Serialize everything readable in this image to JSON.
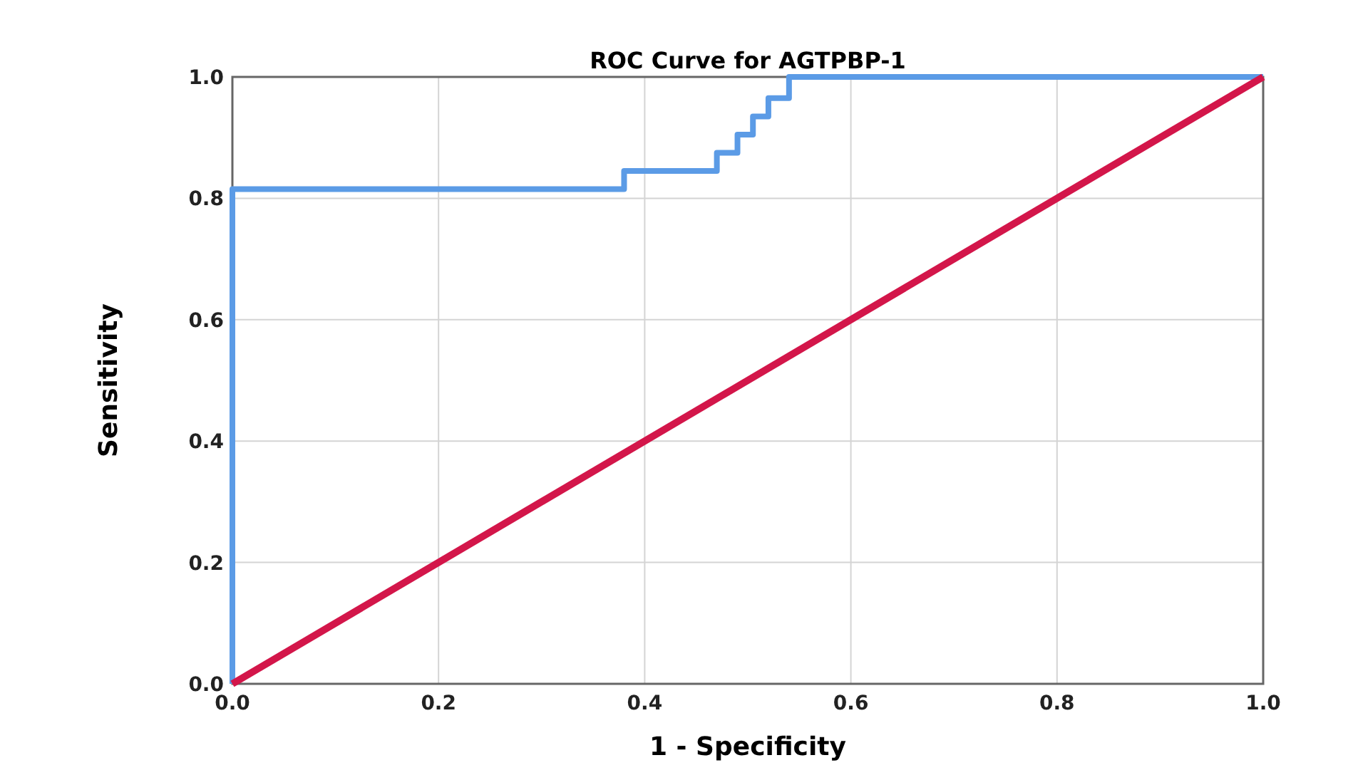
{
  "chart_data": {
    "type": "line",
    "title": "ROC Curve for AGTPBP-1",
    "xlabel": "1 - Specificity",
    "ylabel": "Sensitivity",
    "xlim": [
      0,
      1
    ],
    "ylim": [
      0,
      1
    ],
    "xticks": [
      {
        "value": 0,
        "label": "0.0"
      },
      0.2,
      0.4,
      0.6,
      0.8,
      {
        "value": 1,
        "label": "1.0"
      }
    ],
    "yticks": [
      {
        "value": 0,
        "label": "0.0"
      },
      0.2,
      0.4,
      0.6,
      0.8,
      {
        "value": 1,
        "label": "1.0"
      }
    ],
    "grid": true,
    "line_style": "solid",
    "marker": "none",
    "series": [
      {
        "color": "#5b9be6",
        "x": [
          0,
          0,
          0.38,
          0.38,
          0.45,
          0.47,
          0.47,
          0.49,
          0.49,
          0.505,
          0.505,
          0.52,
          0.52,
          0.54,
          0.54,
          1
        ],
        "values": [
          0,
          0.815,
          0.815,
          0.845,
          0.845,
          0.845,
          0.875,
          0.875,
          0.905,
          0.905,
          0.935,
          0.935,
          0.965,
          0.965,
          1,
          1
        ]
      },
      {
        "color": "#d3164a",
        "x": [
          0,
          1
        ],
        "values": [
          0,
          1
        ]
      }
    ]
  }
}
